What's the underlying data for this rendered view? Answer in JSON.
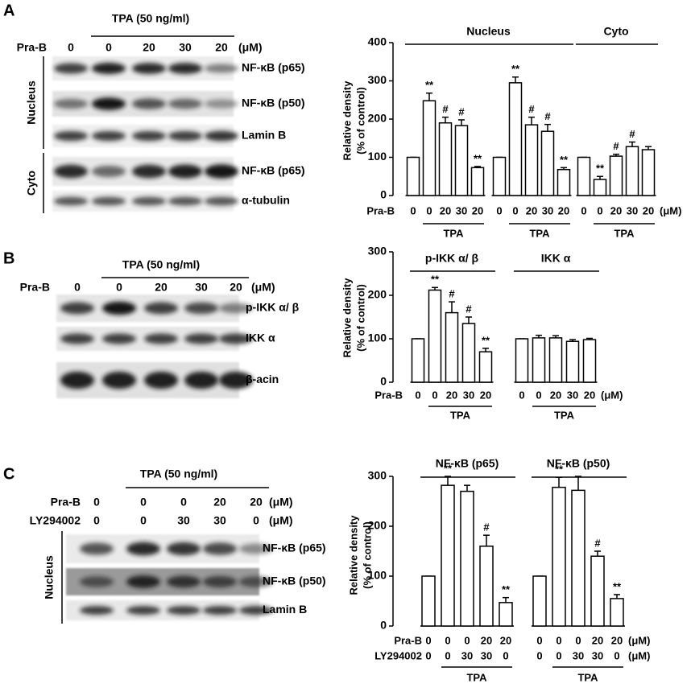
{
  "blots": [
    {
      "panel": "A",
      "treatment": "TPA (50 ng/ml)",
      "unit": "(μM)",
      "conditions": [
        {
          "name": "Pra-B",
          "values": [
            0,
            0,
            20,
            30,
            20
          ]
        }
      ],
      "compartments": [
        {
          "name": "Nucleus",
          "bands": [
            "NF-κB (p65)",
            "NF-κB (p50)",
            "Lamin B"
          ]
        },
        {
          "name": "Cyto",
          "bands": [
            "NF-κB (p65)",
            "α-tubulin"
          ]
        }
      ]
    },
    {
      "panel": "B",
      "treatment": "TPA (50 ng/ml)",
      "unit": "(μM)",
      "conditions": [
        {
          "name": "Pra-B",
          "values": [
            0,
            0,
            20,
            30,
            20
          ]
        }
      ],
      "bands": [
        "p-IKK α/ β",
        "IKK α",
        "β-acin"
      ]
    },
    {
      "panel": "C",
      "treatment": "TPA (50 ng/ml)",
      "unit": "(μM)",
      "conditions": [
        {
          "name": "Pra-B",
          "values": [
            0,
            0,
            0,
            20,
            20
          ]
        },
        {
          "name": "LY294002",
          "values": [
            0,
            0,
            30,
            30,
            0
          ]
        }
      ],
      "compartments": [
        {
          "name": "Nucleus",
          "bands": [
            "NF-κB (p65)",
            "NF-κB (p50)",
            "Lamin B"
          ]
        }
      ]
    }
  ],
  "chart_data": [
    {
      "type": "bar",
      "ylabel": [
        "Relative density",
        "(% of control)"
      ],
      "ylim": [
        0,
        400
      ],
      "yticks": [
        0,
        100,
        200,
        300,
        400
      ],
      "color": "#ffffff",
      "treatment": "TPA",
      "unit": "(μM)",
      "conditions": [
        {
          "name": "Pra-B",
          "values": [
            0,
            0,
            20,
            30,
            20
          ]
        }
      ],
      "groups": [
        {
          "name": "Nucleus",
          "sets": [
            {
              "values": [
                100,
                248,
                190,
                183,
                73
              ],
              "errors": [
                0,
                20,
                15,
                15,
                3
              ],
              "annotations": [
                null,
                "**",
                "#",
                "#",
                "**"
              ]
            },
            {
              "values": [
                100,
                295,
                185,
                168,
                68
              ],
              "errors": [
                0,
                15,
                20,
                18,
                5
              ],
              "annotations": [
                null,
                "**",
                "#",
                "#",
                "**"
              ]
            }
          ]
        },
        {
          "name": "Cyto",
          "sets": [
            {
              "values": [
                100,
                42,
                103,
                128,
                120
              ],
              "errors": [
                0,
                8,
                5,
                12,
                8
              ],
              "annotations": [
                null,
                "**",
                "#",
                "#",
                null
              ]
            }
          ]
        }
      ]
    },
    {
      "type": "bar",
      "ylabel": [
        "Relative density",
        "(% of control)"
      ],
      "ylim": [
        0,
        300
      ],
      "yticks": [
        0,
        100,
        200,
        300
      ],
      "color": "#ffffff",
      "treatment": "TPA",
      "unit": "(μM)",
      "conditions": [
        {
          "name": "Pra-B",
          "values": [
            0,
            0,
            20,
            30,
            20
          ]
        }
      ],
      "groups": [
        {
          "name": "p-IKK α/ β",
          "sets": [
            {
              "values": [
                100,
                212,
                160,
                135,
                70
              ],
              "errors": [
                0,
                6,
                25,
                15,
                8
              ],
              "annotations": [
                null,
                "**",
                "#",
                "#",
                "**"
              ]
            }
          ]
        },
        {
          "name": "IKK α",
          "sets": [
            {
              "values": [
                100,
                102,
                102,
                94,
                98
              ],
              "errors": [
                0,
                6,
                5,
                4,
                3
              ],
              "annotations": [
                null,
                null,
                null,
                null,
                null
              ]
            }
          ]
        }
      ]
    },
    {
      "type": "bar",
      "ylabel": [
        "Relative density",
        "(% of control)"
      ],
      "ylim": [
        0,
        300
      ],
      "yticks": [
        0,
        100,
        200,
        300
      ],
      "color": "#ffffff",
      "treatment": "TPA",
      "unit": "(μM)",
      "conditions": [
        {
          "name": "Pra-B",
          "values": [
            0,
            0,
            0,
            20,
            20
          ]
        },
        {
          "name": "LY294002",
          "values": [
            0,
            0,
            30,
            30,
            0
          ]
        }
      ],
      "groups": [
        {
          "name": "NF-κB (p65)",
          "sets": [
            {
              "values": [
                100,
                282,
                270,
                160,
                47
              ],
              "errors": [
                0,
                18,
                12,
                22,
                10
              ],
              "annotations": [
                null,
                "**",
                null,
                "#",
                "**"
              ]
            }
          ]
        },
        {
          "name": "NF-κB (p50)",
          "sets": [
            {
              "values": [
                100,
                278,
                272,
                140,
                55
              ],
              "errors": [
                0,
                20,
                28,
                10,
                8
              ],
              "annotations": [
                null,
                "**",
                null,
                "#",
                "**"
              ]
            }
          ]
        }
      ]
    }
  ]
}
